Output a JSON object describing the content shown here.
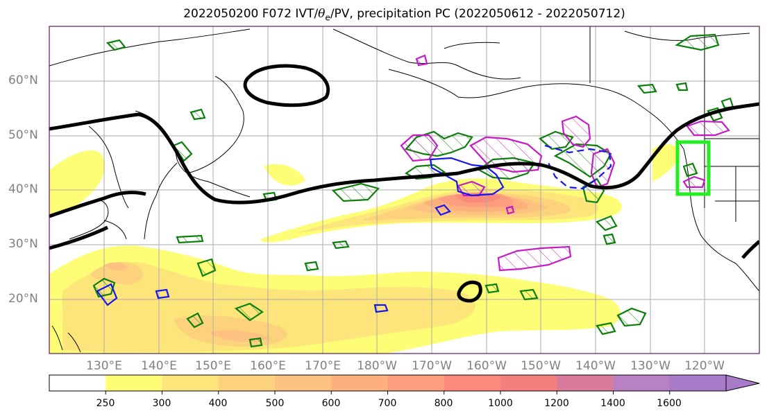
{
  "title": {
    "prefix": "2022050200 F072 IVT/",
    "theta": "θ",
    "theta_sub": "e",
    "suffix": "/PV, precipitation PC (2022050612 - 2022050712)"
  },
  "lat_labels": [
    "60°N",
    "50°N",
    "40°N",
    "30°N",
    "20°N"
  ],
  "lon_labels": [
    "130°E",
    "140°E",
    "150°E",
    "160°E",
    "170°E",
    "180°W",
    "170°W",
    "160°W",
    "150°W",
    "140°W",
    "130°W",
    "120°W"
  ],
  "colorbar": {
    "ticks": [
      "250",
      "300",
      "400",
      "500",
      "600",
      "700",
      "800",
      "1000",
      "1200",
      "1400",
      "1600"
    ],
    "colors": [
      "#ffffff",
      "#fefe76",
      "#fde47b",
      "#fdd27c",
      "#fdc180",
      "#fdb07d",
      "#fc9e7d",
      "#fc8a7b",
      "#f1807f",
      "#d87c9a",
      "#b881c1",
      "#a77bc8"
    ]
  },
  "colors": {
    "jet_contour": "#000000",
    "pv_contour_green": "#0b7e0b",
    "precip_blue": "#1515ee",
    "precip_magenta": "#c51ac5",
    "target_box": "#22ee22",
    "coastline": "#000000",
    "grid": "#aaaaaa"
  }
}
